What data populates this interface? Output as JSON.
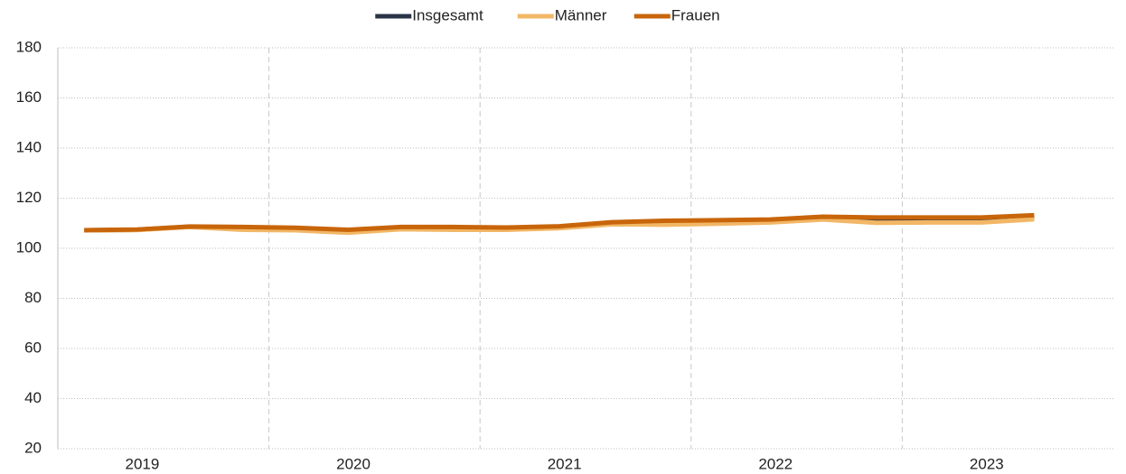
{
  "chart_data": {
    "type": "line",
    "categories": [
      "2019",
      null,
      null,
      null,
      "2020",
      null,
      null,
      null,
      "2021",
      null,
      null,
      null,
      "2022",
      null,
      null,
      null,
      "2023",
      null,
      null,
      null
    ],
    "series": [
      {
        "name": "Insgesamt",
        "color": "#2b3446",
        "values": [
          107.2,
          107.4,
          108.6,
          108.0,
          107.7,
          106.8,
          108.0,
          108.0,
          107.8,
          108.4,
          110.0,
          110.2,
          110.5,
          110.9,
          112.0,
          111.3,
          111.3,
          111.3,
          112.4,
          null
        ]
      },
      {
        "name": "Männer",
        "color": "#f2b766",
        "values": [
          107.2,
          107.3,
          108.5,
          107.4,
          107.2,
          106.2,
          107.6,
          107.4,
          107.4,
          108.0,
          109.6,
          109.4,
          109.8,
          110.3,
          111.5,
          110.2,
          110.3,
          110.3,
          111.6,
          null
        ]
      },
      {
        "name": "Frauen",
        "color": "#c8650a",
        "values": [
          107.2,
          107.5,
          108.7,
          108.5,
          108.2,
          107.4,
          108.5,
          108.5,
          108.3,
          108.8,
          110.4,
          111.0,
          111.2,
          111.5,
          112.6,
          112.3,
          112.3,
          112.3,
          113.2,
          null
        ]
      }
    ],
    "ylim": [
      20,
      180
    ],
    "yticks": [
      20,
      40,
      60,
      80,
      100,
      120,
      140,
      160,
      180
    ],
    "grid": true,
    "legend": "top"
  }
}
